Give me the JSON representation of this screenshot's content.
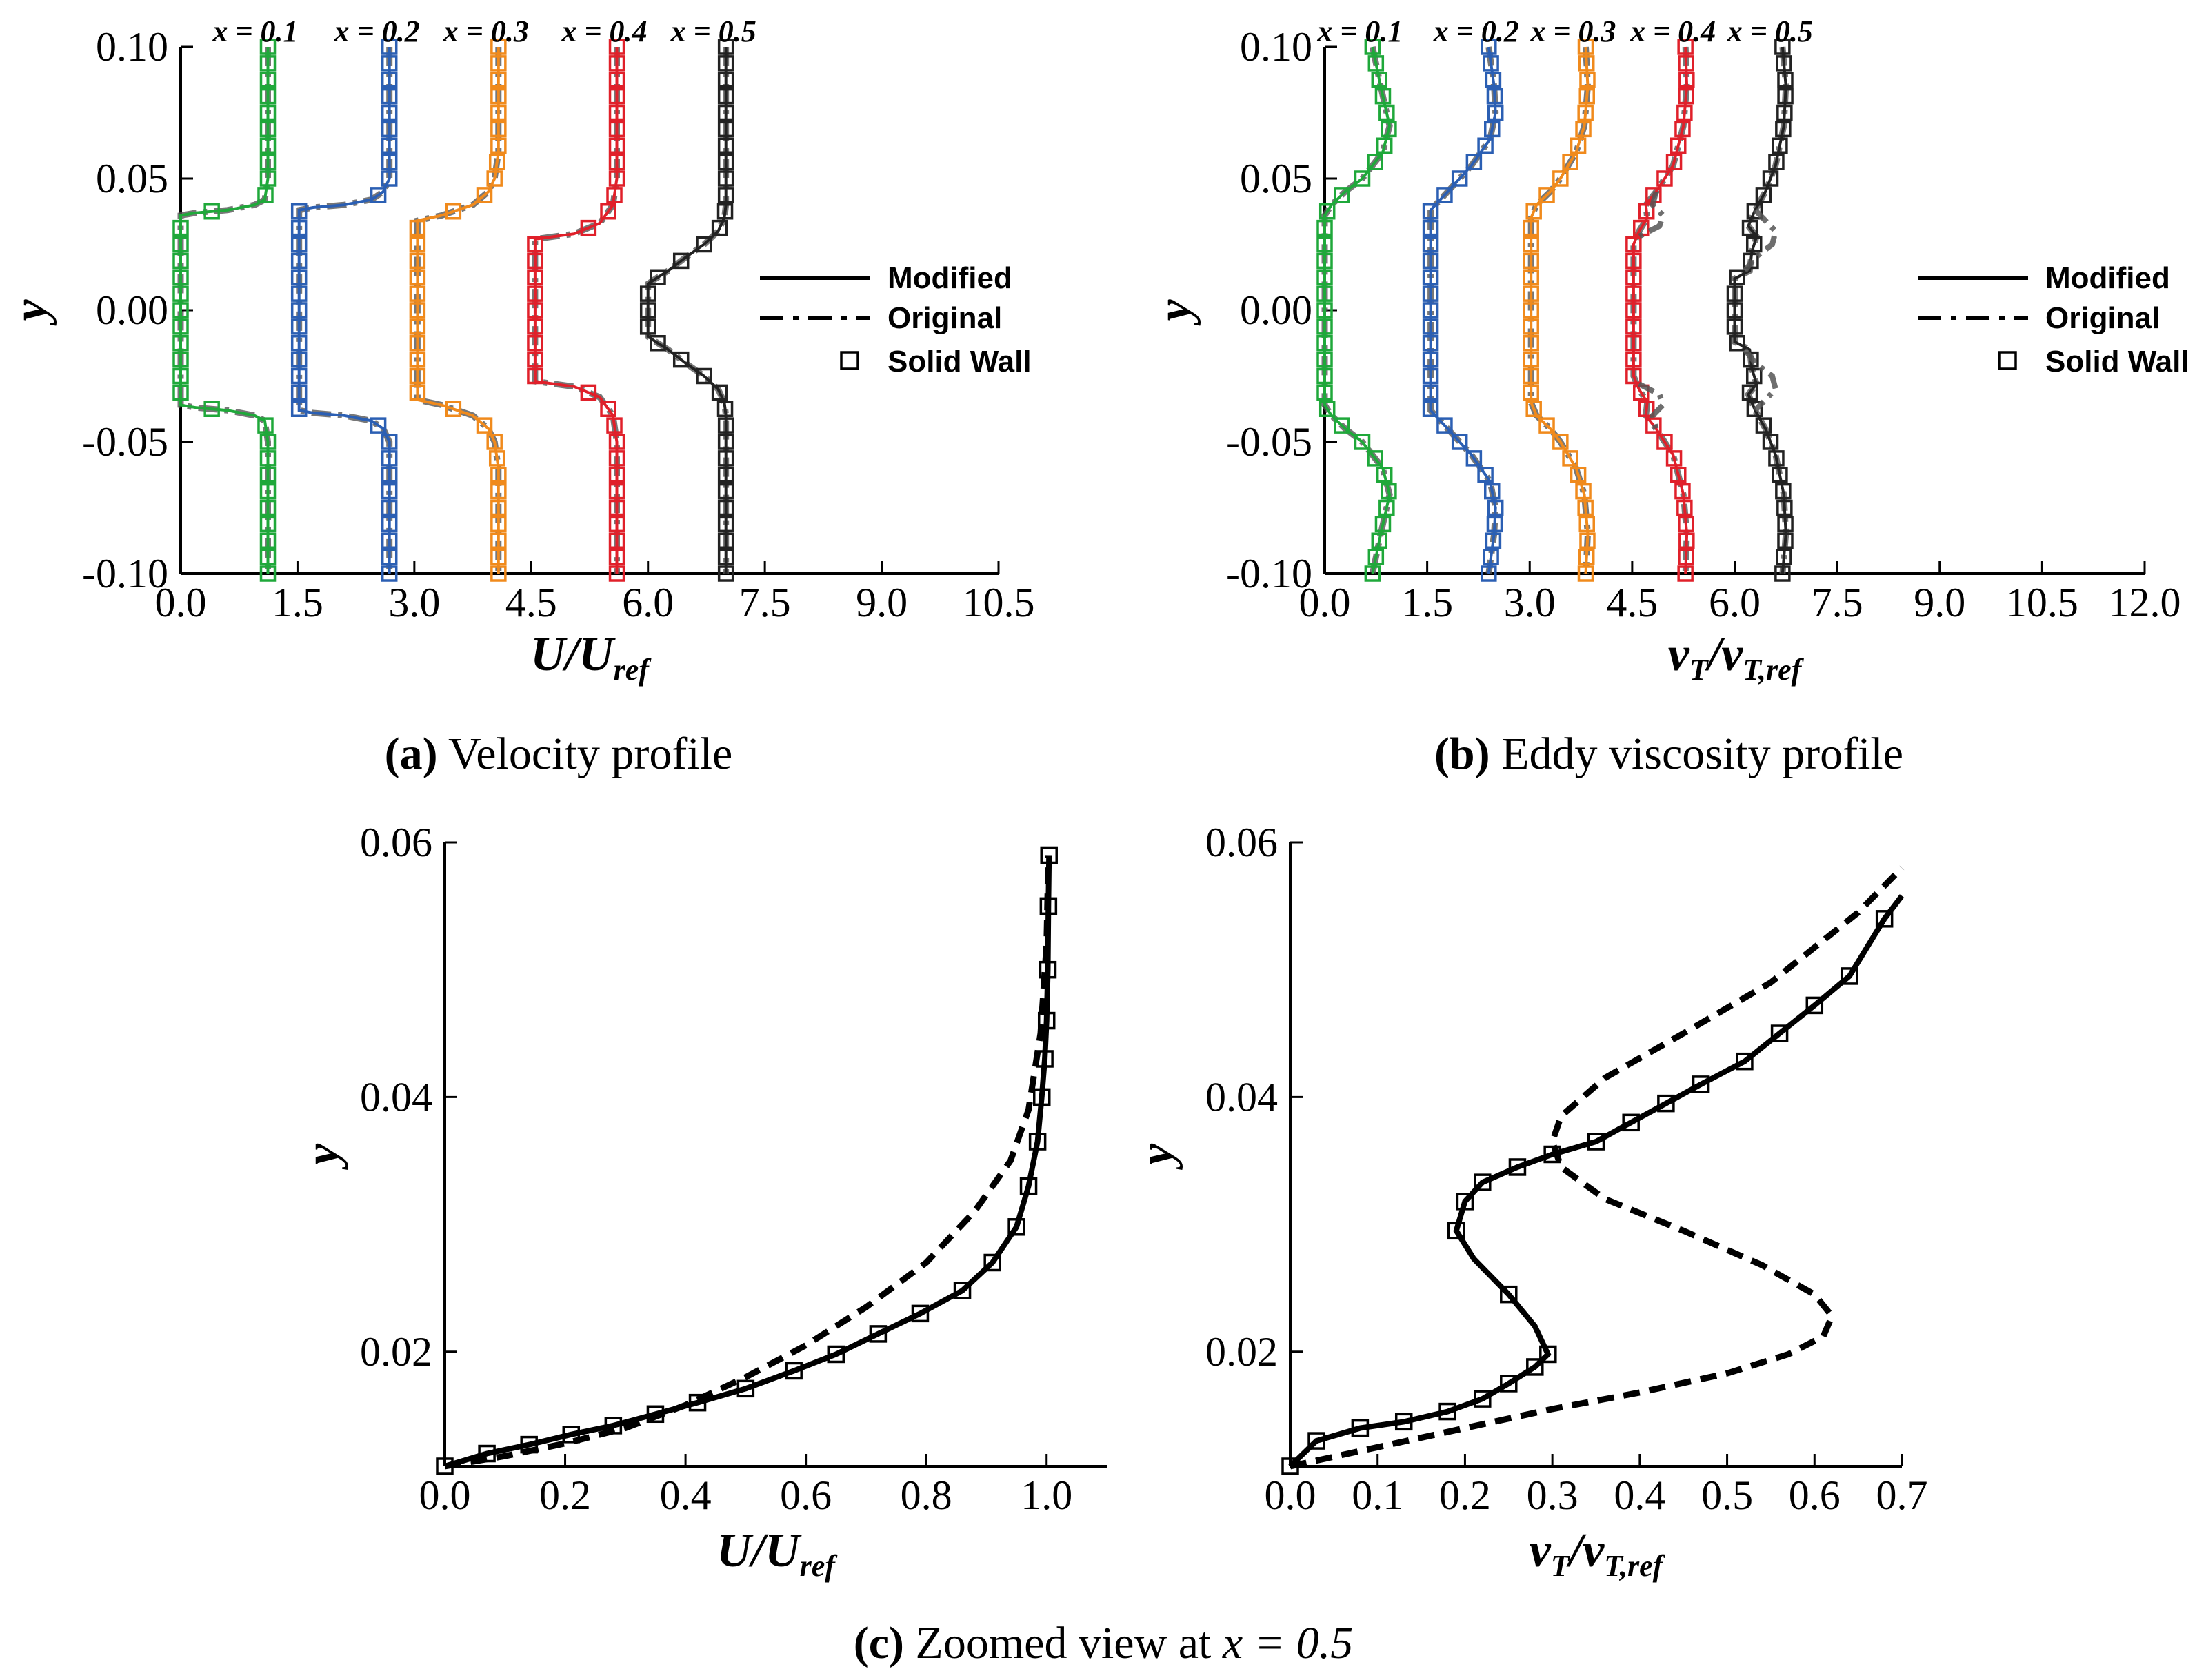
{
  "colors": {
    "axis": "#000000",
    "original_line": "#555555",
    "stations": [
      "#1fa83a",
      "#2b5fb3",
      "#f08a1c",
      "#e0202a",
      "#222222"
    ]
  },
  "captions": {
    "a_letter": "(a)",
    "a_text": " Velocity profile",
    "b_letter": "(b)",
    "b_text": " Eddy viscosity profile",
    "c_letter": "(c)",
    "c_text": " Zoomed view at ",
    "c_math": "x = 0.5"
  },
  "chart_data": [
    {
      "id": "a",
      "type": "line",
      "xlabel": "U/U",
      "xlabel_sub": "ref",
      "ylabel": "y",
      "xlim": [
        0,
        10.5
      ],
      "ylim": [
        -0.1,
        0.1
      ],
      "xticks": [
        "0.0",
        "1.5",
        "3.0",
        "4.5",
        "6.0",
        "7.5",
        "9.0",
        "10.5"
      ],
      "yticks": [
        "0.10",
        "0.05",
        "0.00",
        "-0.05",
        "-0.10"
      ],
      "station_labels": [
        "x = 0.1",
        "x = 0.2",
        "x = 0.3",
        "x = 0.4",
        "x = 0.5"
      ],
      "legend": {
        "position": "right",
        "entries": [
          "Modified",
          "Original",
          "Solid Wall"
        ]
      },
      "series": [
        {
          "name": "x = 0.1",
          "offset": 0,
          "y": [
            0.1,
            0.05,
            0.042,
            0.04,
            0.038,
            0.037,
            0.036,
            0.0,
            -0.036,
            -0.037,
            -0.038,
            -0.04,
            -0.042,
            -0.05,
            -0.1
          ],
          "x": [
            1.12,
            1.12,
            1.08,
            0.95,
            0.6,
            0.2,
            0.0,
            0.0,
            0.0,
            0.2,
            0.6,
            0.95,
            1.08,
            1.12,
            1.12
          ]
        },
        {
          "name": "x = 0.2",
          "offset": 1.5,
          "y": [
            0.1,
            0.05,
            0.045,
            0.042,
            0.04,
            0.039,
            0.038,
            0.0,
            -0.038,
            -0.039,
            -0.04,
            -0.042,
            -0.045,
            -0.05,
            -0.1
          ],
          "x": [
            2.68,
            2.68,
            2.6,
            2.45,
            2.1,
            1.7,
            1.52,
            1.52,
            1.52,
            1.7,
            2.1,
            2.45,
            2.6,
            2.68,
            2.68
          ]
        },
        {
          "name": "x = 0.3",
          "offset": 3.0,
          "y": [
            0.1,
            0.06,
            0.05,
            0.045,
            0.04,
            0.036,
            0.034,
            0.0,
            -0.034,
            -0.036,
            -0.04,
            -0.045,
            -0.05,
            -0.06,
            -0.1
          ],
          "x": [
            4.08,
            4.08,
            4.03,
            3.95,
            3.75,
            3.35,
            3.04,
            3.04,
            3.04,
            3.35,
            3.75,
            3.95,
            4.03,
            4.08,
            4.08
          ]
        },
        {
          "name": "x = 0.4",
          "offset": 4.5,
          "y": [
            0.1,
            0.05,
            0.04,
            0.033,
            0.029,
            0.027,
            0.0,
            -0.027,
            -0.029,
            -0.033,
            -0.04,
            -0.05,
            -0.1
          ],
          "x": [
            5.6,
            5.6,
            5.55,
            5.38,
            5.05,
            4.55,
            4.55,
            4.55,
            5.05,
            5.38,
            5.55,
            5.6,
            5.6
          ]
        },
        {
          "name": "x = 0.5",
          "offset": 6.0,
          "y": [
            0.1,
            0.04,
            0.035,
            0.03,
            0.025,
            0.02,
            0.015,
            0.012,
            0.01,
            -0.01,
            -0.012,
            -0.015,
            -0.02,
            -0.025,
            -0.03,
            -0.035,
            -0.04,
            -0.1
          ],
          "x": [
            7.0,
            7.0,
            6.98,
            6.9,
            6.72,
            6.48,
            6.26,
            6.1,
            6.0,
            6.0,
            6.1,
            6.26,
            6.48,
            6.72,
            6.9,
            6.98,
            7.0,
            7.0
          ]
        }
      ]
    },
    {
      "id": "b",
      "type": "line",
      "xlabel": "ν",
      "xlabel_sub": "T",
      "xlabel_mid": "/ν",
      "xlabel_sub2": "T,ref",
      "ylabel": "y",
      "xlim": [
        0,
        12.0
      ],
      "ylim": [
        -0.1,
        0.1
      ],
      "xticks": [
        "0.0",
        "1.5",
        "3.0",
        "4.5",
        "6.0",
        "7.5",
        "9.0",
        "10.5",
        "12.0"
      ],
      "yticks": [
        "0.10",
        "0.05",
        "0.00",
        "-0.05",
        "-0.10"
      ],
      "station_labels": [
        "x = 0.1",
        "x = 0.2",
        "x = 0.3",
        "x = 0.4",
        "x = 0.5"
      ],
      "legend": {
        "position": "right",
        "entries": [
          "Modified",
          "Original",
          "Solid Wall"
        ]
      },
      "series": [
        {
          "name": "x = 0.1",
          "offset": 0,
          "y": [
            0.1,
            0.085,
            0.07,
            0.06,
            0.05,
            0.045,
            0.04,
            0.036,
            0.0,
            -0.036,
            -0.04,
            -0.045,
            -0.05,
            -0.06,
            -0.07,
            -0.085,
            -0.1
          ],
          "x": [
            0.7,
            0.82,
            0.95,
            0.85,
            0.55,
            0.3,
            0.1,
            0.0,
            0.0,
            0.0,
            0.1,
            0.3,
            0.55,
            0.85,
            0.95,
            0.82,
            0.7
          ]
        },
        {
          "name": "x = 0.2",
          "offset": 1.5,
          "y": [
            0.1,
            0.085,
            0.075,
            0.065,
            0.055,
            0.045,
            0.038,
            0.0,
            -0.038,
            -0.045,
            -0.055,
            -0.065,
            -0.075,
            -0.085,
            -0.1
          ],
          "x": [
            2.4,
            2.48,
            2.5,
            2.42,
            2.15,
            1.8,
            1.55,
            1.55,
            1.55,
            1.8,
            2.15,
            2.42,
            2.5,
            2.48,
            2.4
          ]
        },
        {
          "name": "x = 0.3",
          "offset": 3.0,
          "y": [
            0.1,
            0.085,
            0.07,
            0.06,
            0.05,
            0.045,
            0.04,
            0.035,
            0.0,
            -0.035,
            -0.04,
            -0.045,
            -0.05,
            -0.06,
            -0.07,
            -0.085,
            -0.1
          ],
          "x": [
            3.82,
            3.85,
            3.8,
            3.68,
            3.45,
            3.3,
            3.1,
            3.02,
            3.02,
            3.02,
            3.1,
            3.3,
            3.45,
            3.68,
            3.8,
            3.85,
            3.82
          ]
        },
        {
          "name": "x = 0.4",
          "offset": 4.5,
          "y": [
            0.1,
            0.085,
            0.07,
            0.055,
            0.045,
            0.04,
            0.035,
            0.03,
            0.025,
            0.0,
            -0.025,
            -0.03,
            -0.035,
            -0.04,
            -0.045,
            -0.055,
            -0.07,
            -0.085,
            -0.1
          ],
          "x": [
            5.28,
            5.3,
            5.25,
            5.1,
            4.85,
            4.7,
            4.72,
            4.6,
            4.52,
            4.52,
            4.52,
            4.6,
            4.72,
            4.7,
            4.85,
            5.1,
            5.25,
            5.3,
            5.28
          ]
        },
        {
          "name": "x = 0.5",
          "offset": 6.0,
          "y": [
            0.1,
            0.085,
            0.07,
            0.055,
            0.045,
            0.038,
            0.032,
            0.028,
            0.022,
            0.015,
            0.012,
            0.0,
            -0.012,
            -0.015,
            -0.022,
            -0.028,
            -0.032,
            -0.038,
            -0.045,
            -0.055,
            -0.07,
            -0.085,
            -0.1
          ],
          "x": [
            6.7,
            6.75,
            6.72,
            6.6,
            6.45,
            6.3,
            6.2,
            6.32,
            6.25,
            6.22,
            6.0,
            6.0,
            6.0,
            6.22,
            6.25,
            6.32,
            6.2,
            6.3,
            6.45,
            6.6,
            6.72,
            6.75,
            6.7
          ]
        }
      ],
      "original_bumps": [
        {
          "offset": 4.5,
          "y": [
            0.045,
            0.04,
            0.036,
            0.032,
            0.028
          ],
          "x": [
            4.85,
            4.8,
            4.95,
            4.9,
            4.6
          ]
        },
        {
          "offset": 4.5,
          "y": [
            -0.028,
            -0.032,
            -0.036,
            -0.04,
            -0.045
          ],
          "x": [
            4.6,
            4.9,
            4.95,
            4.8,
            4.85
          ]
        },
        {
          "offset": 6.0,
          "y": [
            0.038,
            0.034,
            0.03,
            0.025,
            0.02,
            0.015
          ],
          "x": [
            6.3,
            6.45,
            6.6,
            6.55,
            6.3,
            6.15
          ]
        },
        {
          "offset": 6.0,
          "y": [
            -0.015,
            -0.02,
            -0.025,
            -0.03,
            -0.034,
            -0.038
          ],
          "x": [
            6.15,
            6.3,
            6.55,
            6.6,
            6.45,
            6.3
          ]
        }
      ]
    },
    {
      "id": "c1",
      "type": "line",
      "xlabel": "U/U",
      "xlabel_sub": "ref",
      "ylabel": "y",
      "xlim": [
        0,
        1.1
      ],
      "ylim": [
        0.011,
        0.06
      ],
      "xticks": [
        "0.0",
        "0.2",
        "0.4",
        "0.6",
        "0.8",
        "1.0"
      ],
      "xtick_values": [
        0,
        0.2,
        0.4,
        0.6,
        0.8,
        1.0
      ],
      "yticks": [
        "0.06",
        "0.04",
        "0.02"
      ],
      "ytick_values": [
        0.06,
        0.04,
        0.02
      ],
      "series": [
        {
          "name": "Modified",
          "x": [
            0.0,
            0.07,
            0.14,
            0.21,
            0.28,
            0.35,
            0.42,
            0.5,
            0.58,
            0.65,
            0.72,
            0.79,
            0.86,
            0.91,
            0.95,
            0.97,
            0.985,
            0.992,
            0.997,
            1.0,
            1.002,
            1.003,
            1.004
          ],
          "y": [
            0.011,
            0.012,
            0.0127,
            0.0135,
            0.0142,
            0.0151,
            0.016,
            0.0171,
            0.0185,
            0.0198,
            0.0214,
            0.023,
            0.0248,
            0.027,
            0.0298,
            0.033,
            0.0365,
            0.04,
            0.043,
            0.046,
            0.05,
            0.055,
            0.059
          ]
        },
        {
          "name": "Original",
          "x": [
            0.0,
            0.1,
            0.2,
            0.3,
            0.4,
            0.5,
            0.6,
            0.7,
            0.8,
            0.88,
            0.94,
            0.97,
            0.99,
            1.0,
            1.003
          ],
          "y": [
            0.011,
            0.0118,
            0.0128,
            0.014,
            0.0158,
            0.018,
            0.0205,
            0.0235,
            0.027,
            0.031,
            0.035,
            0.039,
            0.045,
            0.052,
            0.059
          ]
        }
      ],
      "markers": {
        "x": [
          0.0,
          0.07,
          0.14,
          0.21,
          0.28,
          0.35,
          0.42,
          0.5,
          0.58,
          0.65,
          0.72,
          0.79,
          0.86,
          0.91,
          0.95,
          0.97,
          0.985,
          0.992,
          0.997,
          1.0,
          1.002,
          1.003,
          1.004
        ],
        "y": [
          0.011,
          0.012,
          0.0127,
          0.0135,
          0.0142,
          0.0151,
          0.016,
          0.0171,
          0.0185,
          0.0198,
          0.0214,
          0.023,
          0.0248,
          0.027,
          0.0298,
          0.033,
          0.0365,
          0.04,
          0.043,
          0.046,
          0.05,
          0.055,
          0.059
        ]
      }
    },
    {
      "id": "c2",
      "type": "line",
      "xlabel": "ν",
      "xlabel_sub": "T",
      "xlabel_mid": "/ν",
      "xlabel_sub2": "T,ref",
      "ylabel": "y",
      "xlim": [
        0,
        0.7
      ],
      "ylim": [
        0.011,
        0.06
      ],
      "xticks": [
        "0.0",
        "0.1",
        "0.2",
        "0.3",
        "0.4",
        "0.5",
        "0.6",
        "0.7"
      ],
      "xtick_values": [
        0,
        0.1,
        0.2,
        0.3,
        0.4,
        0.5,
        0.6,
        0.7
      ],
      "yticks": [
        "0.06",
        "0.04",
        "0.02"
      ],
      "ytick_values": [
        0.06,
        0.04,
        0.02
      ],
      "series": [
        {
          "name": "Modified",
          "x": [
            0.0,
            0.03,
            0.08,
            0.13,
            0.18,
            0.22,
            0.25,
            0.28,
            0.295,
            0.28,
            0.25,
            0.21,
            0.19,
            0.2,
            0.22,
            0.26,
            0.3,
            0.35,
            0.39,
            0.43,
            0.47,
            0.52,
            0.56,
            0.6,
            0.64,
            0.68,
            0.7
          ],
          "y": [
            0.011,
            0.013,
            0.014,
            0.0145,
            0.0153,
            0.0163,
            0.0175,
            0.0188,
            0.0198,
            0.022,
            0.0245,
            0.0273,
            0.0295,
            0.0318,
            0.0333,
            0.0345,
            0.0355,
            0.0365,
            0.038,
            0.0395,
            0.041,
            0.0428,
            0.045,
            0.0472,
            0.0495,
            0.054,
            0.0558
          ]
        },
        {
          "name": "Original",
          "x": [
            0.0,
            0.1,
            0.2,
            0.3,
            0.4,
            0.5,
            0.57,
            0.61,
            0.62,
            0.6,
            0.54,
            0.45,
            0.36,
            0.31,
            0.3,
            0.31,
            0.36,
            0.45,
            0.55,
            0.65,
            0.7
          ],
          "y": [
            0.011,
            0.0125,
            0.014,
            0.0155,
            0.0168,
            0.0183,
            0.0198,
            0.0212,
            0.0228,
            0.0245,
            0.0268,
            0.0295,
            0.032,
            0.0345,
            0.0365,
            0.0385,
            0.0415,
            0.045,
            0.049,
            0.0545,
            0.058
          ]
        }
      ],
      "markers": {
        "x": [
          0.0,
          0.03,
          0.08,
          0.13,
          0.18,
          0.22,
          0.25,
          0.28,
          0.295,
          0.25,
          0.19,
          0.2,
          0.22,
          0.26,
          0.3,
          0.35,
          0.39,
          0.43,
          0.47,
          0.52,
          0.56,
          0.6,
          0.64,
          0.68
        ],
        "y": [
          0.011,
          0.013,
          0.014,
          0.0145,
          0.0153,
          0.0163,
          0.0175,
          0.0188,
          0.0198,
          0.0245,
          0.0295,
          0.0318,
          0.0333,
          0.0345,
          0.0355,
          0.0365,
          0.038,
          0.0395,
          0.041,
          0.0428,
          0.045,
          0.0472,
          0.0495,
          0.054
        ]
      }
    }
  ]
}
